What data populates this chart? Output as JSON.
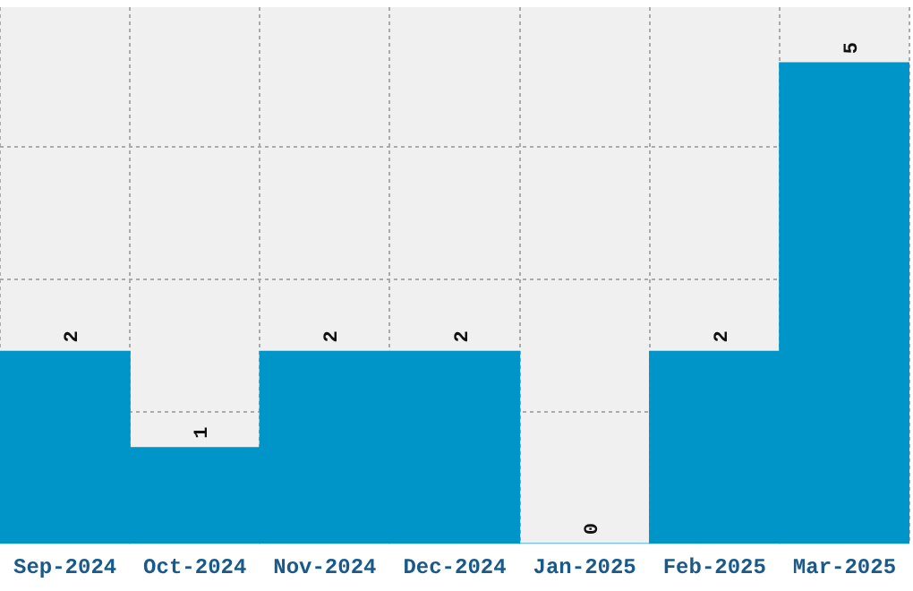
{
  "chart_data": {
    "type": "bar",
    "categories": [
      "Sep-2024",
      "Oct-2024",
      "Nov-2024",
      "Dec-2024",
      "Jan-2025",
      "Feb-2025",
      "Mar-2025"
    ],
    "values": [
      2,
      1,
      2,
      2,
      0,
      2,
      5
    ],
    "color": "#0095c8",
    "ylim": [
      0,
      5.58
    ],
    "yticks": [
      {
        "value": 1.375,
        "label": null
      },
      {
        "value": 2.75,
        "label": null
      },
      {
        "value": 4.125,
        "label": null
      }
    ],
    "tick_labels": "x",
    "grid": true,
    "data_labels": true
  }
}
